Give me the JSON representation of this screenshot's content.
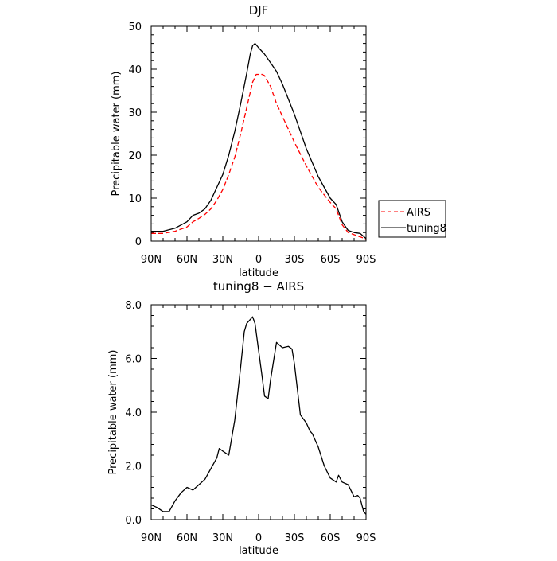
{
  "chart_data": [
    {
      "type": "line",
      "title": "DJF",
      "xlabel": "latitude",
      "ylabel": "Precipitable water (mm)",
      "xlim": [
        90,
        -90
      ],
      "ylim": [
        0,
        50
      ],
      "x_ticks": [
        90,
        60,
        30,
        0,
        -30,
        -60,
        -90
      ],
      "x_tick_labels": [
        "90N",
        "60N",
        "30N",
        "0",
        "30S",
        "60S",
        "90S"
      ],
      "y_ticks": [
        0,
        10,
        20,
        30,
        40,
        50
      ],
      "y_tick_labels": [
        "0",
        "10",
        "20",
        "30",
        "40",
        "50"
      ],
      "grid": false,
      "legend": {
        "placement": "right",
        "entries": [
          "AIRS",
          "tuning8"
        ]
      },
      "series": [
        {
          "name": "AIRS",
          "color": "#ff0000",
          "dash": "dashed",
          "x": [
            90,
            80,
            70,
            60,
            55,
            50,
            45,
            40,
            35,
            30,
            25,
            20,
            15,
            10,
            5,
            2,
            0,
            -3,
            -5,
            -10,
            -15,
            -20,
            -30,
            -40,
            -50,
            -60,
            -65,
            -70,
            -75,
            -80,
            -85,
            -90
          ],
          "y": [
            1.8,
            1.8,
            2.3,
            3.3,
            4.5,
            5.3,
            6.2,
            7.5,
            9.5,
            12,
            15.5,
            19.5,
            25,
            31,
            37,
            38.8,
            38.8,
            38.8,
            38.5,
            36,
            32,
            29,
            23,
            17.5,
            12.5,
            9,
            7.5,
            3.8,
            2,
            1.5,
            1,
            0.5
          ]
        },
        {
          "name": "tuning8",
          "color": "#000000",
          "dash": "solid",
          "x": [
            90,
            80,
            70,
            60,
            55,
            50,
            45,
            40,
            35,
            30,
            25,
            20,
            15,
            10,
            7,
            5,
            3,
            0,
            -5,
            -10,
            -15,
            -20,
            -25,
            -30,
            -40,
            -50,
            -60,
            -65,
            -70,
            -75,
            -80,
            -85,
            -90
          ],
          "y": [
            2.3,
            2.3,
            3,
            4.5,
            6,
            6.5,
            7.5,
            9.5,
            12.5,
            15.5,
            20,
            25.5,
            32,
            39,
            43.5,
            45.5,
            46,
            45,
            43.5,
            41.5,
            39.5,
            36.5,
            33,
            29.5,
            21.5,
            15,
            10,
            8.5,
            4.5,
            2.5,
            2,
            1.8,
            0.6
          ]
        }
      ]
    },
    {
      "type": "line",
      "title": "tuning8 − AIRS",
      "xlabel": "latitude",
      "ylabel": "Precipitable water (mm)",
      "xlim": [
        90,
        -90
      ],
      "ylim": [
        0,
        8
      ],
      "x_ticks": [
        90,
        60,
        30,
        0,
        -30,
        -60,
        -90
      ],
      "x_tick_labels": [
        "90N",
        "60N",
        "30N",
        "0",
        "30S",
        "60S",
        "90S"
      ],
      "y_ticks": [
        0,
        2,
        4,
        6,
        8
      ],
      "y_tick_labels": [
        "0.0",
        "2.0",
        "4.0",
        "6.0",
        "8.0"
      ],
      "grid": false,
      "series": [
        {
          "color": "#000000",
          "dash": "solid",
          "x": [
            90,
            85,
            80,
            75,
            70,
            65,
            60,
            55,
            50,
            45,
            40,
            35,
            33,
            30,
            25,
            20,
            15,
            12,
            10,
            5,
            3,
            0,
            -3,
            -5,
            -8,
            -10,
            -15,
            -20,
            -25,
            -28,
            -30,
            -35,
            -40,
            -43,
            -45,
            -50,
            -55,
            -60,
            -65,
            -67,
            -70,
            -75,
            -80,
            -83,
            -85,
            -88,
            -90
          ],
          "y": [
            0.55,
            0.45,
            0.3,
            0.3,
            0.7,
            1.0,
            1.2,
            1.1,
            1.3,
            1.5,
            1.9,
            2.3,
            2.65,
            2.55,
            2.4,
            3.7,
            5.7,
            7.0,
            7.3,
            7.55,
            7.3,
            6.3,
            5.3,
            4.6,
            4.5,
            5.2,
            6.6,
            6.4,
            6.45,
            6.35,
            5.8,
            3.9,
            3.6,
            3.3,
            3.2,
            2.7,
            2.0,
            1.55,
            1.4,
            1.65,
            1.4,
            1.3,
            0.85,
            0.9,
            0.8,
            0.3,
            0.2
          ]
        }
      ]
    }
  ]
}
